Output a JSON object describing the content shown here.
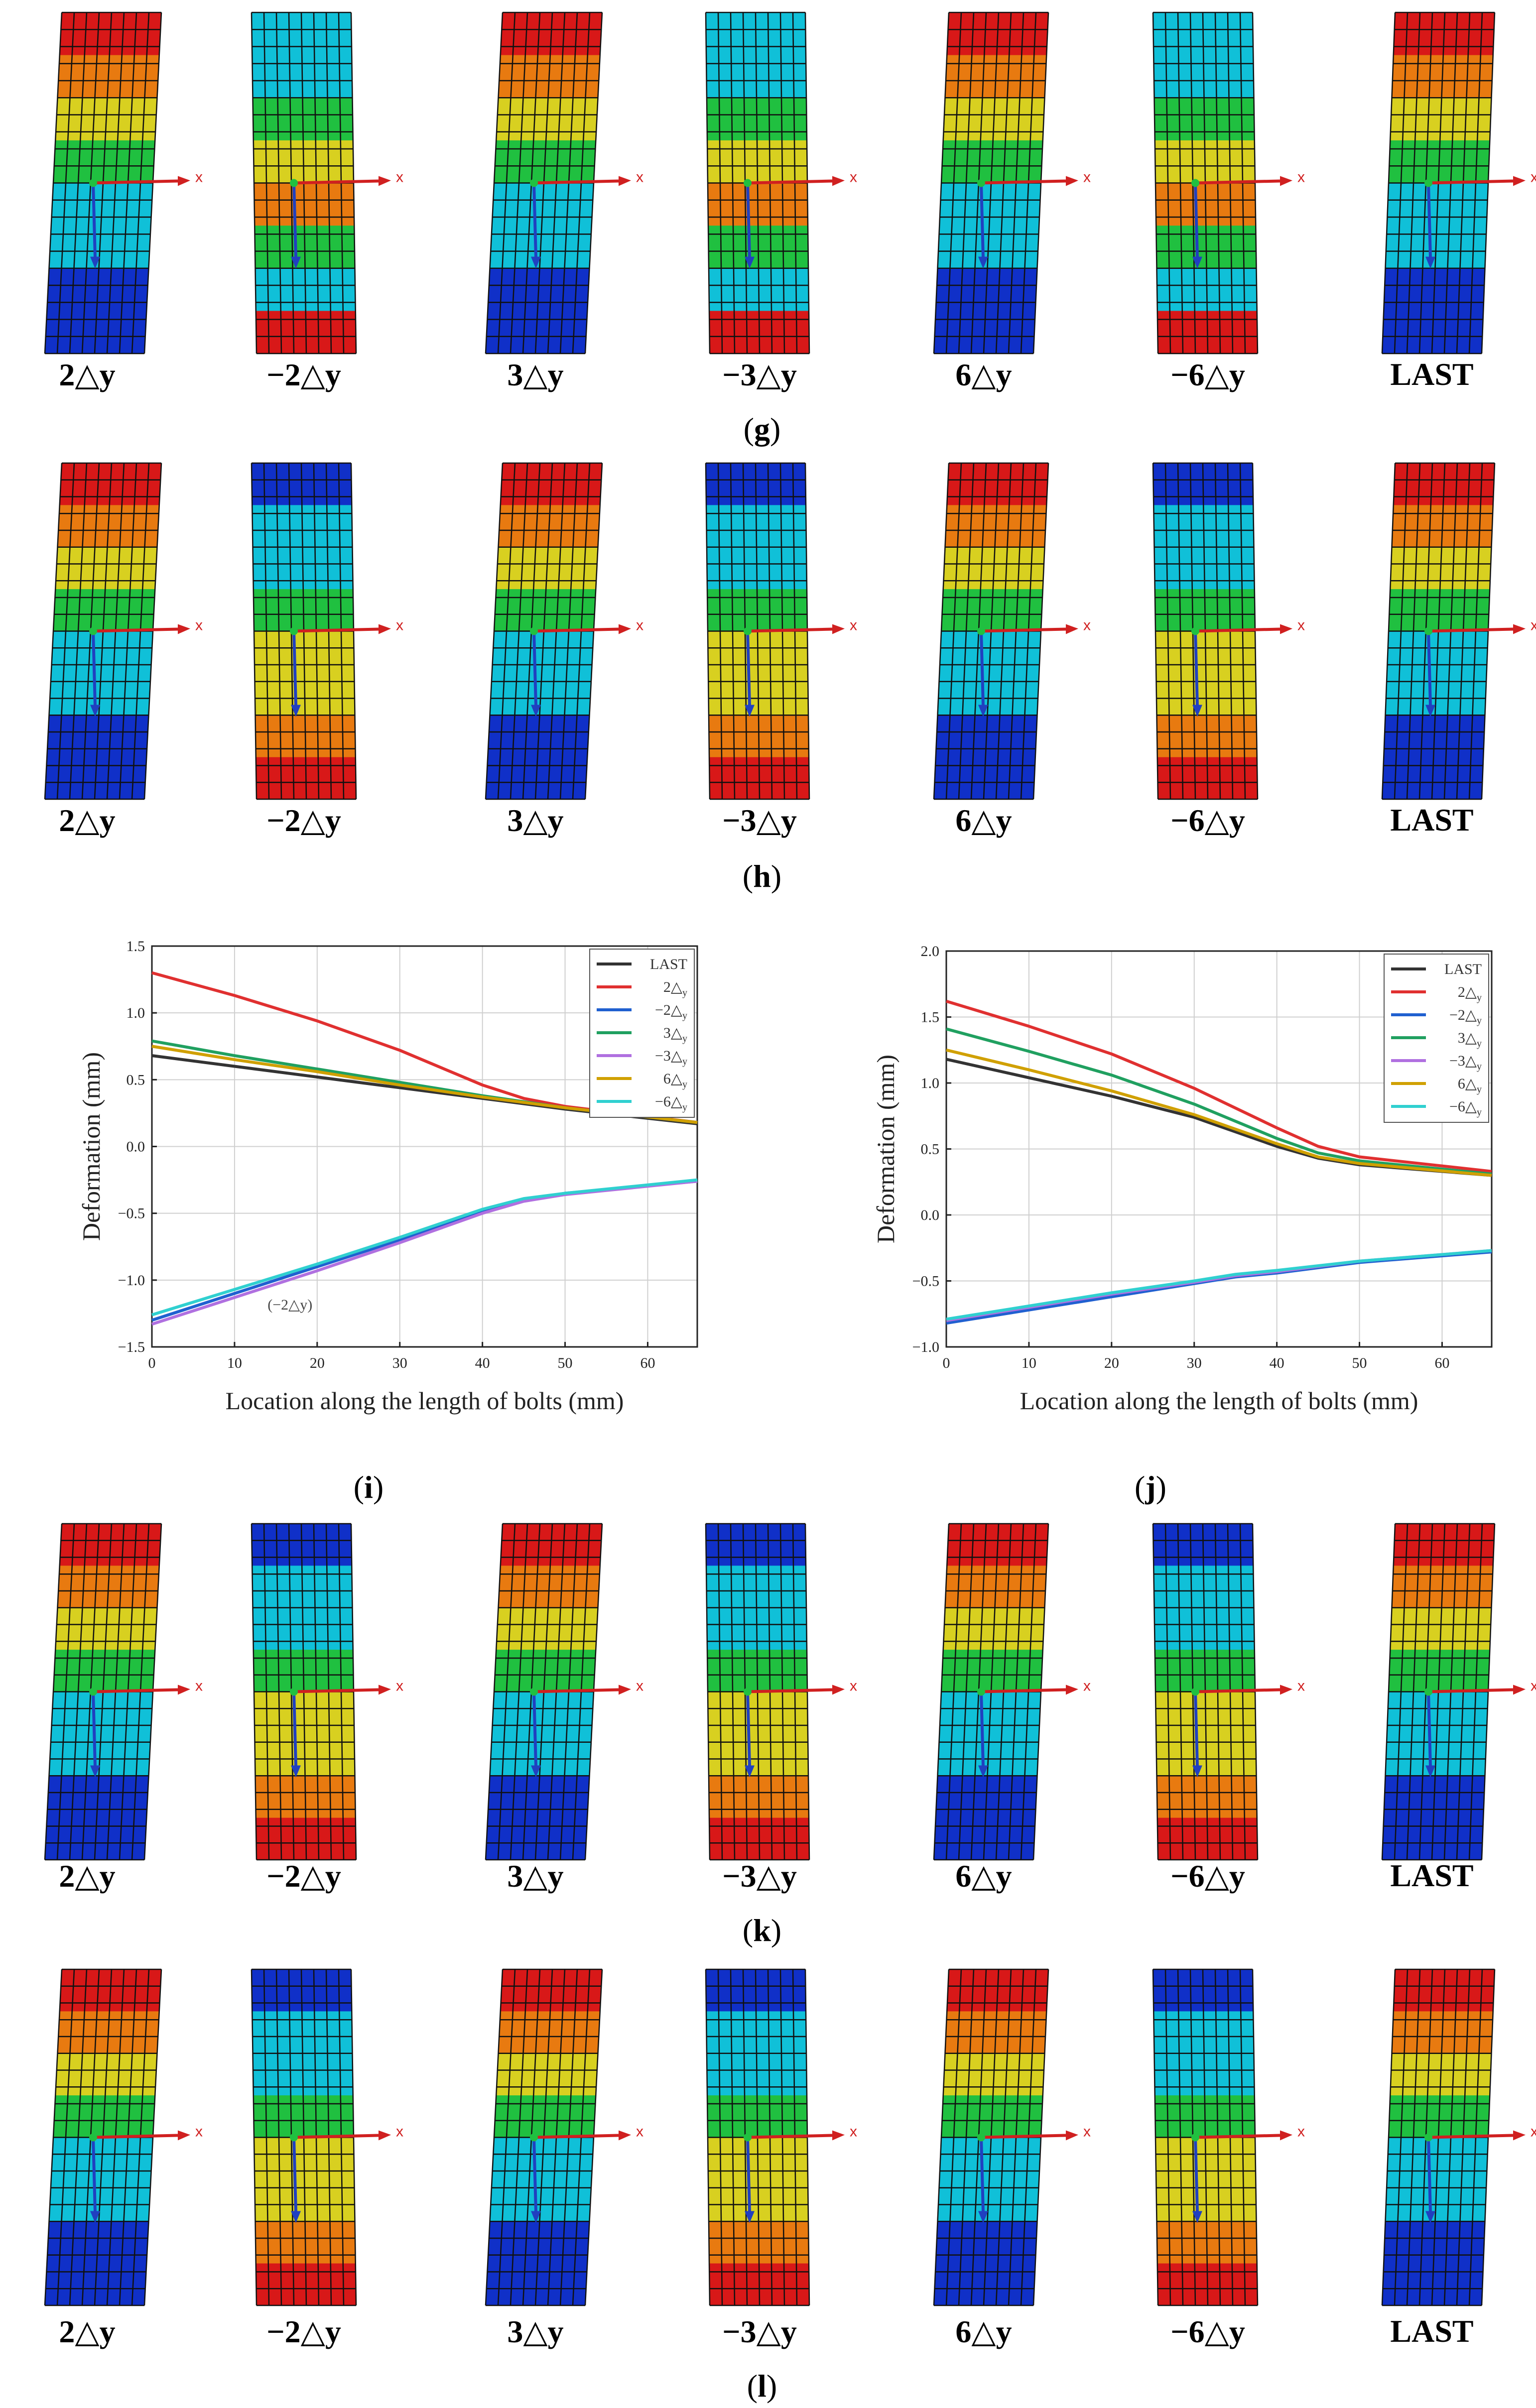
{
  "column_labels": [
    "2△y",
    "−2△y",
    "3△y",
    "−3△y",
    "6△y",
    "−6△y",
    "LAST"
  ],
  "axis_marker": "x",
  "rows": [
    {
      "panel": "g",
      "fields": [
        "pos",
        "neg_g",
        "pos",
        "neg_g",
        "pos",
        "neg_g",
        "pos"
      ]
    },
    {
      "panel": "h",
      "fields": [
        "pos",
        "neg",
        "pos",
        "neg",
        "pos",
        "neg",
        "pos"
      ]
    },
    {
      "panel": "k",
      "fields": [
        "pos",
        "neg",
        "pos",
        "neg",
        "pos",
        "neg",
        "pos"
      ]
    },
    {
      "panel": "l",
      "fields": [
        "pos",
        "neg",
        "pos",
        "neg",
        "pos",
        "neg",
        "pos"
      ]
    }
  ],
  "colors": {
    "blue": "#1030c8",
    "cyan": "#10c0d8",
    "green": "#20c040",
    "yellow": "#d8d020",
    "orange": "#e87a10",
    "red": "#d81818",
    "axis_red": "#d02020",
    "axis_blue": "#2040c0",
    "mesh": "#111111"
  },
  "chart_data": [
    {
      "panel": "i",
      "type": "line",
      "xlabel": "Location along the length of bolts (mm)",
      "ylabel": "Deformation (mm)",
      "xlim": [
        0,
        66
      ],
      "ylim": [
        -1.5,
        1.5
      ],
      "xticks": [
        0,
        10,
        20,
        30,
        40,
        50,
        60
      ],
      "yticks": [
        -1.5,
        -1.0,
        -0.5,
        0.0,
        0.5,
        1.0,
        1.5
      ],
      "ytick_labels": [
        "−1.5",
        "−1.0",
        "−0.5",
        "0.0",
        "0.5",
        "1.0",
        "1.5"
      ],
      "legend_position": "top-right",
      "annotation": "(−2△y)",
      "series": [
        {
          "name": "LAST",
          "sub": "",
          "color": "#333333",
          "x": [
            0,
            10,
            20,
            30,
            40,
            50,
            66
          ],
          "y": [
            0.68,
            0.6,
            0.52,
            0.44,
            0.36,
            0.28,
            0.17
          ]
        },
        {
          "name": "2△",
          "sub": "y",
          "color": "#e03030",
          "x": [
            0,
            10,
            20,
            30,
            40,
            45,
            50,
            66
          ],
          "y": [
            1.3,
            1.13,
            0.94,
            0.72,
            0.46,
            0.36,
            0.3,
            0.18
          ]
        },
        {
          "name": "−2△",
          "sub": "y",
          "color": "#2060d0",
          "x": [
            0,
            10,
            20,
            30,
            40,
            45,
            50,
            66
          ],
          "y": [
            -1.3,
            -1.1,
            -0.9,
            -0.7,
            -0.48,
            -0.4,
            -0.35,
            -0.26
          ]
        },
        {
          "name": "3△",
          "sub": "y",
          "color": "#20a060",
          "x": [
            0,
            10,
            20,
            30,
            40,
            50,
            66
          ],
          "y": [
            0.79,
            0.68,
            0.58,
            0.48,
            0.38,
            0.29,
            0.18
          ]
        },
        {
          "name": "−3△",
          "sub": "y",
          "color": "#b070e0",
          "x": [
            0,
            10,
            20,
            30,
            40,
            45,
            50,
            66
          ],
          "y": [
            -1.33,
            -1.13,
            -0.93,
            -0.72,
            -0.5,
            -0.41,
            -0.36,
            -0.26
          ]
        },
        {
          "name": "6△",
          "sub": "y",
          "color": "#d0a000",
          "x": [
            0,
            10,
            20,
            30,
            40,
            50,
            66
          ],
          "y": [
            0.75,
            0.65,
            0.56,
            0.46,
            0.37,
            0.29,
            0.18
          ]
        },
        {
          "name": "−6△",
          "sub": "y",
          "color": "#30d0d0",
          "x": [
            0,
            10,
            20,
            30,
            40,
            45,
            50,
            66
          ],
          "y": [
            -1.26,
            -1.07,
            -0.88,
            -0.68,
            -0.47,
            -0.39,
            -0.35,
            -0.25
          ]
        }
      ]
    },
    {
      "panel": "j",
      "type": "line",
      "xlabel": "Location along the length of bolts (mm)",
      "ylabel": "Deformation (mm)",
      "xlim": [
        0,
        66
      ],
      "ylim": [
        -1.0,
        2.0
      ],
      "xticks": [
        0,
        10,
        20,
        30,
        40,
        50,
        60
      ],
      "yticks": [
        -1.0,
        -0.5,
        0.0,
        0.5,
        1.0,
        1.5,
        2.0
      ],
      "ytick_labels": [
        "−1.0",
        "−0.5",
        "0.0",
        "0.5",
        "1.0",
        "1.5",
        "2.0"
      ],
      "legend_position": "top-right",
      "annotation": "",
      "series": [
        {
          "name": "LAST",
          "sub": "",
          "color": "#333333",
          "x": [
            0,
            10,
            20,
            30,
            40,
            45,
            50,
            66
          ],
          "y": [
            1.18,
            1.04,
            0.9,
            0.74,
            0.52,
            0.43,
            0.38,
            0.3
          ]
        },
        {
          "name": "2△",
          "sub": "y",
          "color": "#e03030",
          "x": [
            0,
            10,
            20,
            30,
            40,
            45,
            50,
            66
          ],
          "y": [
            1.62,
            1.43,
            1.22,
            0.96,
            0.66,
            0.52,
            0.44,
            0.33
          ]
        },
        {
          "name": "−2△",
          "sub": "y",
          "color": "#2060d0",
          "x": [
            0,
            10,
            20,
            30,
            35,
            40,
            50,
            66
          ],
          "y": [
            -0.82,
            -0.72,
            -0.62,
            -0.52,
            -0.47,
            -0.44,
            -0.36,
            -0.28
          ]
        },
        {
          "name": "3△",
          "sub": "y",
          "color": "#20a060",
          "x": [
            0,
            10,
            20,
            30,
            40,
            45,
            50,
            66
          ],
          "y": [
            1.41,
            1.24,
            1.06,
            0.84,
            0.58,
            0.47,
            0.41,
            0.31
          ]
        },
        {
          "name": "−3△",
          "sub": "y",
          "color": "#b070e0",
          "x": [
            0,
            10,
            20,
            30,
            35,
            40,
            50,
            66
          ],
          "y": [
            -0.8,
            -0.7,
            -0.6,
            -0.51,
            -0.46,
            -0.43,
            -0.35,
            -0.27
          ]
        },
        {
          "name": "6△",
          "sub": "y",
          "color": "#d0a000",
          "x": [
            0,
            10,
            20,
            30,
            40,
            45,
            50,
            66
          ],
          "y": [
            1.25,
            1.1,
            0.94,
            0.76,
            0.54,
            0.44,
            0.39,
            0.3
          ]
        },
        {
          "name": "−6△",
          "sub": "y",
          "color": "#30d0d0",
          "x": [
            0,
            10,
            20,
            30,
            35,
            40,
            50,
            66
          ],
          "y": [
            -0.79,
            -0.69,
            -0.59,
            -0.5,
            -0.45,
            -0.42,
            -0.35,
            -0.27
          ]
        }
      ]
    }
  ]
}
